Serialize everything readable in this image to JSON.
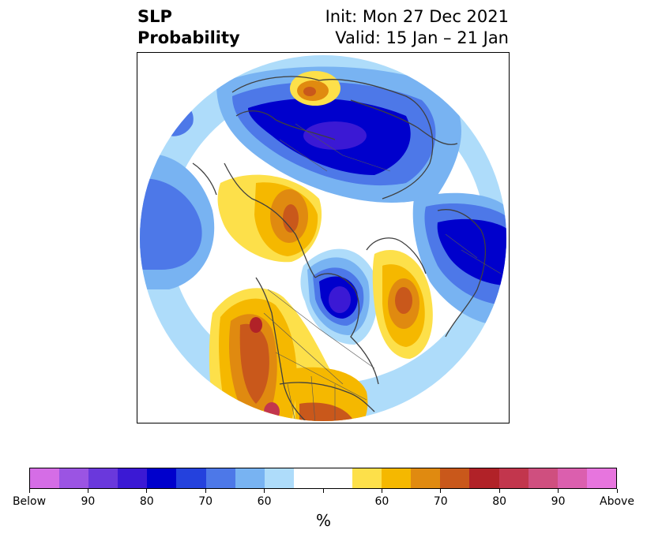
{
  "header": {
    "title_line1": "SLP",
    "title_line2": "Probability",
    "init": "Init: Mon 27 Dec 2021",
    "valid": "Valid: 15 Jan – 21 Jan"
  },
  "colorbar": {
    "colors": [
      "#d56de6",
      "#9b54e3",
      "#6a38dc",
      "#3b19d4",
      "#0000cc",
      "#2441dd",
      "#4d78e8",
      "#78b3f2",
      "#aedcfa",
      "#ffffff",
      "#ffffff",
      "#fde04a",
      "#f5b800",
      "#e08a10",
      "#c9581b",
      "#b12228",
      "#c2364d",
      "#cf4f7f",
      "#db5fae",
      "#e775de"
    ],
    "tick_labels": [
      "Below",
      "90",
      "80",
      "70",
      "60",
      "",
      "60",
      "70",
      "80",
      "90",
      "Above"
    ],
    "unit_label": "%"
  },
  "map": {
    "projection": "north-polar-stereographic",
    "variable": "SLP probability",
    "anomaly_centers": [
      {
        "sign": "below",
        "region": "Eurasia / Siberia",
        "max_percent": 80
      },
      {
        "sign": "below",
        "region": "Hudson Bay / eastern Canada",
        "max_percent": 80
      },
      {
        "sign": "below",
        "region": "North Atlantic / western Europe",
        "max_percent": 80
      },
      {
        "sign": "below",
        "region": "Central North Pacific",
        "max_percent": 70
      },
      {
        "sign": "above",
        "region": "Western US / NE Pacific coast",
        "max_percent": 80
      },
      {
        "sign": "above",
        "region": "Alaska / Bering",
        "max_percent": 70
      },
      {
        "sign": "above",
        "region": "Central North Atlantic",
        "max_percent": 70
      },
      {
        "sign": "above",
        "region": "Mediterranean / North Africa",
        "max_percent": 70
      },
      {
        "sign": "above",
        "region": "Southeast US / Gulf",
        "max_percent": 70
      }
    ]
  }
}
